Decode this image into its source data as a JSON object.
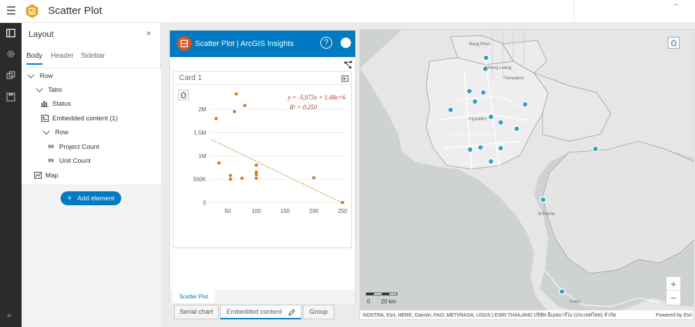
{
  "app": {
    "title": "Scatter Plot",
    "accent_color": "#007ac2"
  },
  "panel": {
    "title": "Layout",
    "tabs": [
      {
        "label": "Body",
        "active": true
      },
      {
        "label": "Header",
        "active": false
      },
      {
        "label": "Sidebar",
        "active": false
      }
    ],
    "tree": [
      {
        "label": "Row",
        "icon": "chevron-down-icon"
      },
      {
        "label": "Tabs",
        "icon": "chevron-down-icon"
      },
      {
        "label": "Status",
        "icon": "bar-chart-icon"
      },
      {
        "label": "Embedded content (1)",
        "icon": "embed-icon"
      },
      {
        "label": "Row",
        "icon": "chevron-down-icon"
      },
      {
        "label": "Project Count",
        "icon": "number-icon"
      },
      {
        "label": "Unit Count",
        "icon": "number-icon"
      },
      {
        "label": "Map",
        "icon": "map-icon"
      }
    ],
    "number_icon_text": "99",
    "add_element_label": "Add element"
  },
  "widget": {
    "title": "Scatter Plot | ArcGIS Insights",
    "help": "?",
    "card_title": "Card 1",
    "active_tab_label": "Scatter Plot"
  },
  "bottom_tabs": [
    {
      "label": "Serial chart",
      "active": false
    },
    {
      "label": "Embedded content",
      "active": true
    },
    {
      "label": "Group",
      "active": false
    }
  ],
  "chart_data": {
    "type": "scatter",
    "x_ticks": [
      "50",
      "100",
      "150",
      "200",
      "250"
    ],
    "y_ticks": [
      "0",
      "500K",
      "1M",
      "1.5M",
      "2M"
    ],
    "xlim": [
      20,
      255
    ],
    "ylim": [
      0,
      2300000
    ],
    "points": [
      [
        30,
        1800000
      ],
      [
        35,
        850000
      ],
      [
        55,
        580000
      ],
      [
        55,
        500000
      ],
      [
        62,
        1950000
      ],
      [
        65,
        2330000
      ],
      [
        75,
        520000
      ],
      [
        80,
        2080000
      ],
      [
        100,
        800000
      ],
      [
        100,
        650000
      ],
      [
        100,
        600000
      ],
      [
        100,
        520000
      ],
      [
        200,
        530000
      ],
      [
        250,
        0
      ]
    ],
    "trendline": {
      "equation": "y = -5,973x + 1.48e+6",
      "r_squared": "R² = 0.250",
      "slope": -5973,
      "intercept": 1480000
    },
    "point_color": "#d9741e",
    "grid": true
  },
  "map": {
    "attribution_left": "NOSTRA, Esri, HERE, Garmin, FAO, METI/NASA, USGS | ESRI THAILAND บริษัท อีเอสอาร์ไอ (ประเทศไทย) จำกัด",
    "attribution_right": "Powered by Esri",
    "scale_zero": "0",
    "scale_label": "20 km",
    "zoom_in": "+",
    "zoom_out": "−",
    "marker_color": "#33a4c4",
    "place_labels": [
      "Bang Phun",
      "Khlong Luang",
      "Thanyaburi",
      "กรุงเทพฯ",
      "Si Racha",
      "ระยอง"
    ]
  }
}
